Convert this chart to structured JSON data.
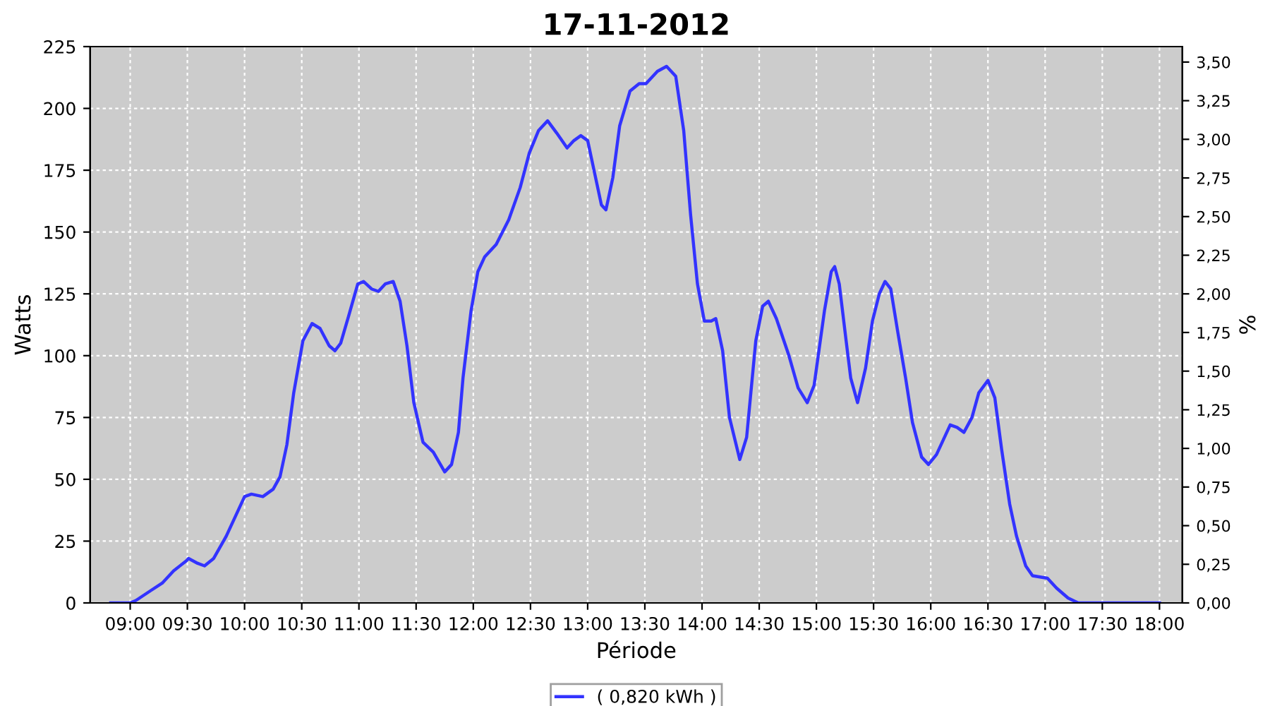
{
  "chart_data": {
    "type": "line",
    "title": "17-11-2012",
    "xlabel": "Période",
    "ylabel": "Watts",
    "y2label": "%",
    "xlim": [
      8.65,
      18.2
    ],
    "xticks": [
      {
        "value": 9,
        "label": "09:00"
      },
      {
        "value": 9.5,
        "label": "09:30"
      },
      {
        "value": 10,
        "label": "10:00"
      },
      {
        "value": 10.5,
        "label": "10:30"
      },
      {
        "value": 11,
        "label": "11:00"
      },
      {
        "value": 11.5,
        "label": "11:30"
      },
      {
        "value": 12,
        "label": "12:00"
      },
      {
        "value": 12.5,
        "label": "12:30"
      },
      {
        "value": 13,
        "label": "13:00"
      },
      {
        "value": 13.5,
        "label": "13:30"
      },
      {
        "value": 14,
        "label": "14:00"
      },
      {
        "value": 14.5,
        "label": "14:30"
      },
      {
        "value": 15,
        "label": "15:00"
      },
      {
        "value": 15.5,
        "label": "15:30"
      },
      {
        "value": 16,
        "label": "16:00"
      },
      {
        "value": 16.5,
        "label": "16:30"
      },
      {
        "value": 17,
        "label": "17:00"
      },
      {
        "value": 17.5,
        "label": "17:30"
      },
      {
        "value": 18,
        "label": "18:00"
      }
    ],
    "ylim": [
      0,
      225
    ],
    "yticks": [
      0,
      25,
      50,
      75,
      100,
      125,
      150,
      175,
      200,
      225
    ],
    "y2lim": [
      0,
      3.6
    ],
    "y2ticks": [
      {
        "value": 0,
        "label": "0,00"
      },
      {
        "value": 0.25,
        "label": "0,25"
      },
      {
        "value": 0.5,
        "label": "0,50"
      },
      {
        "value": 0.75,
        "label": "0,75"
      },
      {
        "value": 1,
        "label": "1,00"
      },
      {
        "value": 1.25,
        "label": "1,25"
      },
      {
        "value": 1.5,
        "label": "1,50"
      },
      {
        "value": 1.75,
        "label": "1,75"
      },
      {
        "value": 2,
        "label": "2,00"
      },
      {
        "value": 2.25,
        "label": "2,25"
      },
      {
        "value": 2.5,
        "label": "2,50"
      },
      {
        "value": 2.75,
        "label": "2,75"
      },
      {
        "value": 3,
        "label": "3,00"
      },
      {
        "value": 3.25,
        "label": "3,25"
      },
      {
        "value": 3.5,
        "label": "3,50"
      }
    ],
    "grid": true,
    "legend": "bottom",
    "series": [
      {
        "name": "( 0,820 kWh )",
        "color": "#3333ff",
        "x": [
          8.83,
          9.0,
          9.05,
          9.18,
          9.28,
          9.38,
          9.49,
          9.51,
          9.59,
          9.65,
          9.73,
          9.84,
          9.92,
          10.0,
          10.06,
          10.16,
          10.25,
          10.31,
          10.37,
          10.43,
          10.51,
          10.59,
          10.66,
          10.74,
          10.79,
          10.84,
          10.91,
          10.99,
          11.04,
          11.11,
          11.17,
          11.23,
          11.3,
          11.36,
          11.42,
          11.48,
          11.56,
          11.65,
          11.75,
          11.81,
          11.87,
          11.91,
          11.98,
          12.04,
          12.1,
          12.2,
          12.31,
          12.41,
          12.49,
          12.57,
          12.65,
          12.73,
          12.82,
          12.88,
          12.94,
          13.0,
          13.06,
          13.12,
          13.16,
          13.22,
          13.28,
          13.37,
          13.45,
          13.51,
          13.61,
          13.69,
          13.77,
          13.84,
          13.9,
          13.96,
          14.02,
          14.08,
          14.12,
          14.18,
          14.24,
          14.33,
          14.39,
          14.47,
          14.53,
          14.58,
          14.65,
          14.76,
          14.84,
          14.92,
          14.98,
          15.07,
          15.13,
          15.16,
          15.2,
          15.26,
          15.3,
          15.36,
          15.43,
          15.49,
          15.55,
          15.6,
          15.65,
          15.71,
          15.78,
          15.84,
          15.92,
          15.98,
          16.05,
          16.11,
          16.17,
          16.23,
          16.29,
          16.36,
          16.42,
          16.5,
          16.56,
          16.62,
          16.69,
          16.75,
          16.83,
          16.89,
          17.02,
          17.1,
          17.2,
          17.29,
          17.66,
          18.0
        ],
        "values": [
          0,
          0,
          1,
          5,
          8,
          13,
          17,
          18,
          16,
          15,
          18,
          27,
          35,
          43,
          44,
          43,
          46,
          51,
          64,
          85,
          106,
          113,
          111,
          104,
          102,
          105,
          116,
          129,
          130,
          127,
          126,
          129,
          130,
          122,
          104,
          81,
          65,
          61,
          53,
          56,
          69,
          91,
          118,
          134,
          140,
          145,
          155,
          168,
          182,
          191,
          195,
          190,
          184,
          187,
          189,
          187,
          174,
          161,
          159,
          172,
          193,
          207,
          210,
          210,
          215,
          217,
          213,
          191,
          157,
          129,
          114,
          114,
          115,
          102,
          75,
          58,
          67,
          106,
          120,
          122,
          115,
          100,
          87,
          81,
          88,
          118,
          134,
          136,
          129,
          106,
          91,
          81,
          95,
          114,
          125,
          130,
          127,
          110,
          91,
          73,
          59,
          56,
          60,
          66,
          72,
          71,
          69,
          75,
          85,
          90,
          83,
          62,
          40,
          27,
          15,
          11,
          10,
          6,
          2,
          0,
          0,
          0
        ]
      }
    ]
  }
}
